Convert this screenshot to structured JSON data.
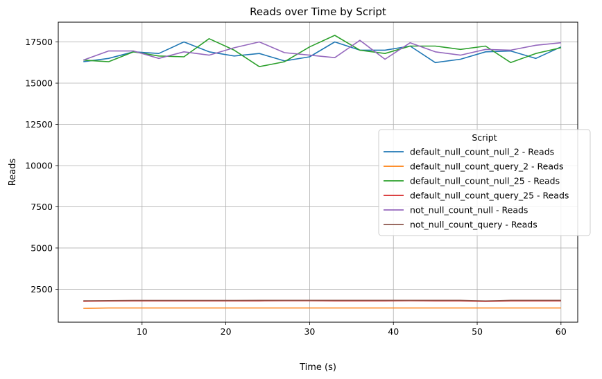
{
  "chart_data": {
    "type": "line",
    "title": "Reads over Time by Script",
    "xlabel": "Time (s)",
    "ylabel": "Reads",
    "xlim": [
      0,
      62
    ],
    "ylim": [
      500,
      18700
    ],
    "xticks": [
      10,
      20,
      30,
      40,
      50,
      60
    ],
    "xtick_labels": [
      "10",
      "20",
      "30",
      "40",
      "50",
      "60"
    ],
    "yticks": [
      2500,
      5000,
      7500,
      10000,
      12500,
      15000,
      17500
    ],
    "ytick_labels": [
      "2500",
      "5000",
      "7500",
      "10000",
      "12500",
      "15000",
      "17500"
    ],
    "grid": true,
    "legend": {
      "title": "Script",
      "placement": "center-right"
    },
    "x": [
      3,
      6,
      9,
      12,
      15,
      18,
      21,
      24,
      27,
      30,
      33,
      36,
      39,
      42,
      45,
      48,
      51,
      54,
      57,
      60
    ],
    "series": [
      {
        "name": "default_null_count_null_2 - Reads",
        "color": "#1f77b4",
        "values": [
          16300,
          16500,
          16900,
          16800,
          17500,
          16900,
          16650,
          16800,
          16350,
          16600,
          17500,
          17000,
          17000,
          17250,
          16250,
          16450,
          16900,
          16950,
          16500,
          17200
        ]
      },
      {
        "name": "default_null_count_query_2 - Reads",
        "color": "#ff7f0e",
        "values": [
          1340,
          1360,
          1360,
          1360,
          1360,
          1360,
          1360,
          1360,
          1360,
          1360,
          1360,
          1360,
          1360,
          1360,
          1360,
          1360,
          1360,
          1360,
          1360,
          1360
        ]
      },
      {
        "name": "default_null_count_null_25 - Reads",
        "color": "#2ca02c",
        "values": [
          16400,
          16300,
          16900,
          16650,
          16600,
          17700,
          17000,
          16000,
          16300,
          17200,
          17900,
          17000,
          16800,
          17250,
          17250,
          17050,
          17250,
          16250,
          16800,
          17150
        ]
      },
      {
        "name": "default_null_count_query_25 - Reads",
        "color": "#d62728",
        "values": [
          1770,
          1780,
          1790,
          1790,
          1790,
          1790,
          1790,
          1790,
          1800,
          1800,
          1790,
          1790,
          1790,
          1800,
          1790,
          1790,
          1760,
          1790,
          1790,
          1790
        ]
      },
      {
        "name": "not_null_count_null - Reads",
        "color": "#9467bd",
        "values": [
          16400,
          16950,
          16950,
          16500,
          16900,
          16700,
          17150,
          17500,
          16850,
          16700,
          16550,
          17600,
          16450,
          17450,
          16900,
          16700,
          17050,
          17000,
          17300,
          17450
        ]
      },
      {
        "name": "not_null_count_query - Reads",
        "color": "#8c564b",
        "values": [
          1800,
          1810,
          1820,
          1820,
          1820,
          1820,
          1820,
          1830,
          1830,
          1830,
          1830,
          1830,
          1830,
          1830,
          1830,
          1830,
          1790,
          1830,
          1830,
          1830
        ]
      }
    ]
  }
}
